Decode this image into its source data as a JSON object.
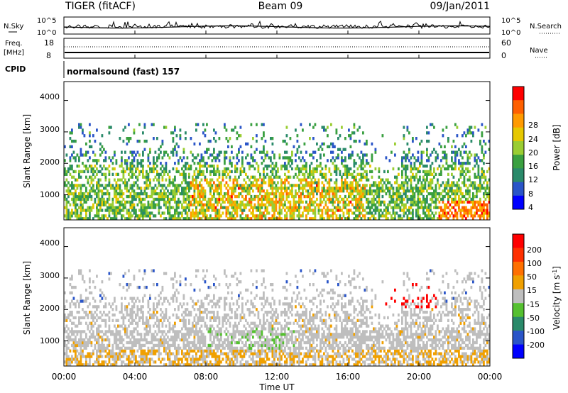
{
  "header": {
    "radar": "TIGER (fitACF)",
    "beam": "Beam 09",
    "date": "09/Jan/2011"
  },
  "noise_panel": {
    "left_label": "N.Sky",
    "left_ticks": [
      "10^5",
      "10^0"
    ],
    "right_ticks": [
      "10^5",
      "10^0"
    ],
    "right_label": "N.Search"
  },
  "freq_panel": {
    "left_label_1": "Freq.",
    "left_label_2": "[MHz]",
    "left_ticks": [
      "18",
      "8"
    ],
    "right_ticks": [
      "60",
      "0"
    ],
    "right_label": "Nave"
  },
  "cpid_panel": {
    "label": "CPID",
    "text": "normalsound (fast) 157"
  },
  "colors": {
    "power_scale": [
      "#0000ff",
      "#2a55c8",
      "#2a8a6a",
      "#3aa040",
      "#9acd32",
      "#e6c800",
      "#ff9a00",
      "#ff6000",
      "#ff0000"
    ],
    "velocity_scale": [
      "#0000ff",
      "#2a55c8",
      "#2a8a6a",
      "#55c030",
      "#bebebe",
      "#f0a000",
      "#ff7000",
      "#ff3000",
      "#ff0000"
    ]
  },
  "chart_data": [
    {
      "type": "heatmap",
      "panel": "power",
      "ylabel": "Slant Range [km]",
      "yticks": [
        "4000",
        "3000",
        "2000",
        "1000"
      ],
      "ytick_values": [
        4000,
        3000,
        2000,
        1000
      ],
      "ylim": [
        200,
        4600
      ],
      "xlim_hours": [
        0,
        24
      ],
      "colorbar_label": "Power [dB]",
      "colorbar_ticks": [
        "28",
        "24",
        "20",
        "16",
        "12",
        "8",
        "4"
      ],
      "colorbar_tick_values": [
        28,
        24,
        20,
        16,
        12,
        8,
        4
      ],
      "colorbar_range": [
        0,
        30
      ]
    },
    {
      "type": "heatmap",
      "panel": "velocity",
      "ylabel": "Slant Range [km]",
      "yticks": [
        "4000",
        "3000",
        "2000",
        "1000"
      ],
      "ytick_values": [
        4000,
        3000,
        2000,
        1000
      ],
      "ylim": [
        200,
        4600
      ],
      "xlim_hours": [
        0,
        24
      ],
      "xlabel": "Time UT",
      "xticks": [
        "00:00",
        "04:00",
        "08:00",
        "12:00",
        "16:00",
        "20:00",
        "00:00"
      ],
      "xtick_values": [
        0,
        4,
        8,
        12,
        16,
        20,
        24
      ],
      "colorbar_label": "Velocity [m s",
      "colorbar_exp": "-1",
      "colorbar_label_end": "]",
      "colorbar_ticks": [
        "200",
        "100",
        "50",
        "15",
        "-15",
        "-50",
        "-100",
        "-200"
      ],
      "colorbar_tick_values": [
        200,
        100,
        50,
        15,
        -15,
        -50,
        -100,
        -200
      ]
    }
  ]
}
